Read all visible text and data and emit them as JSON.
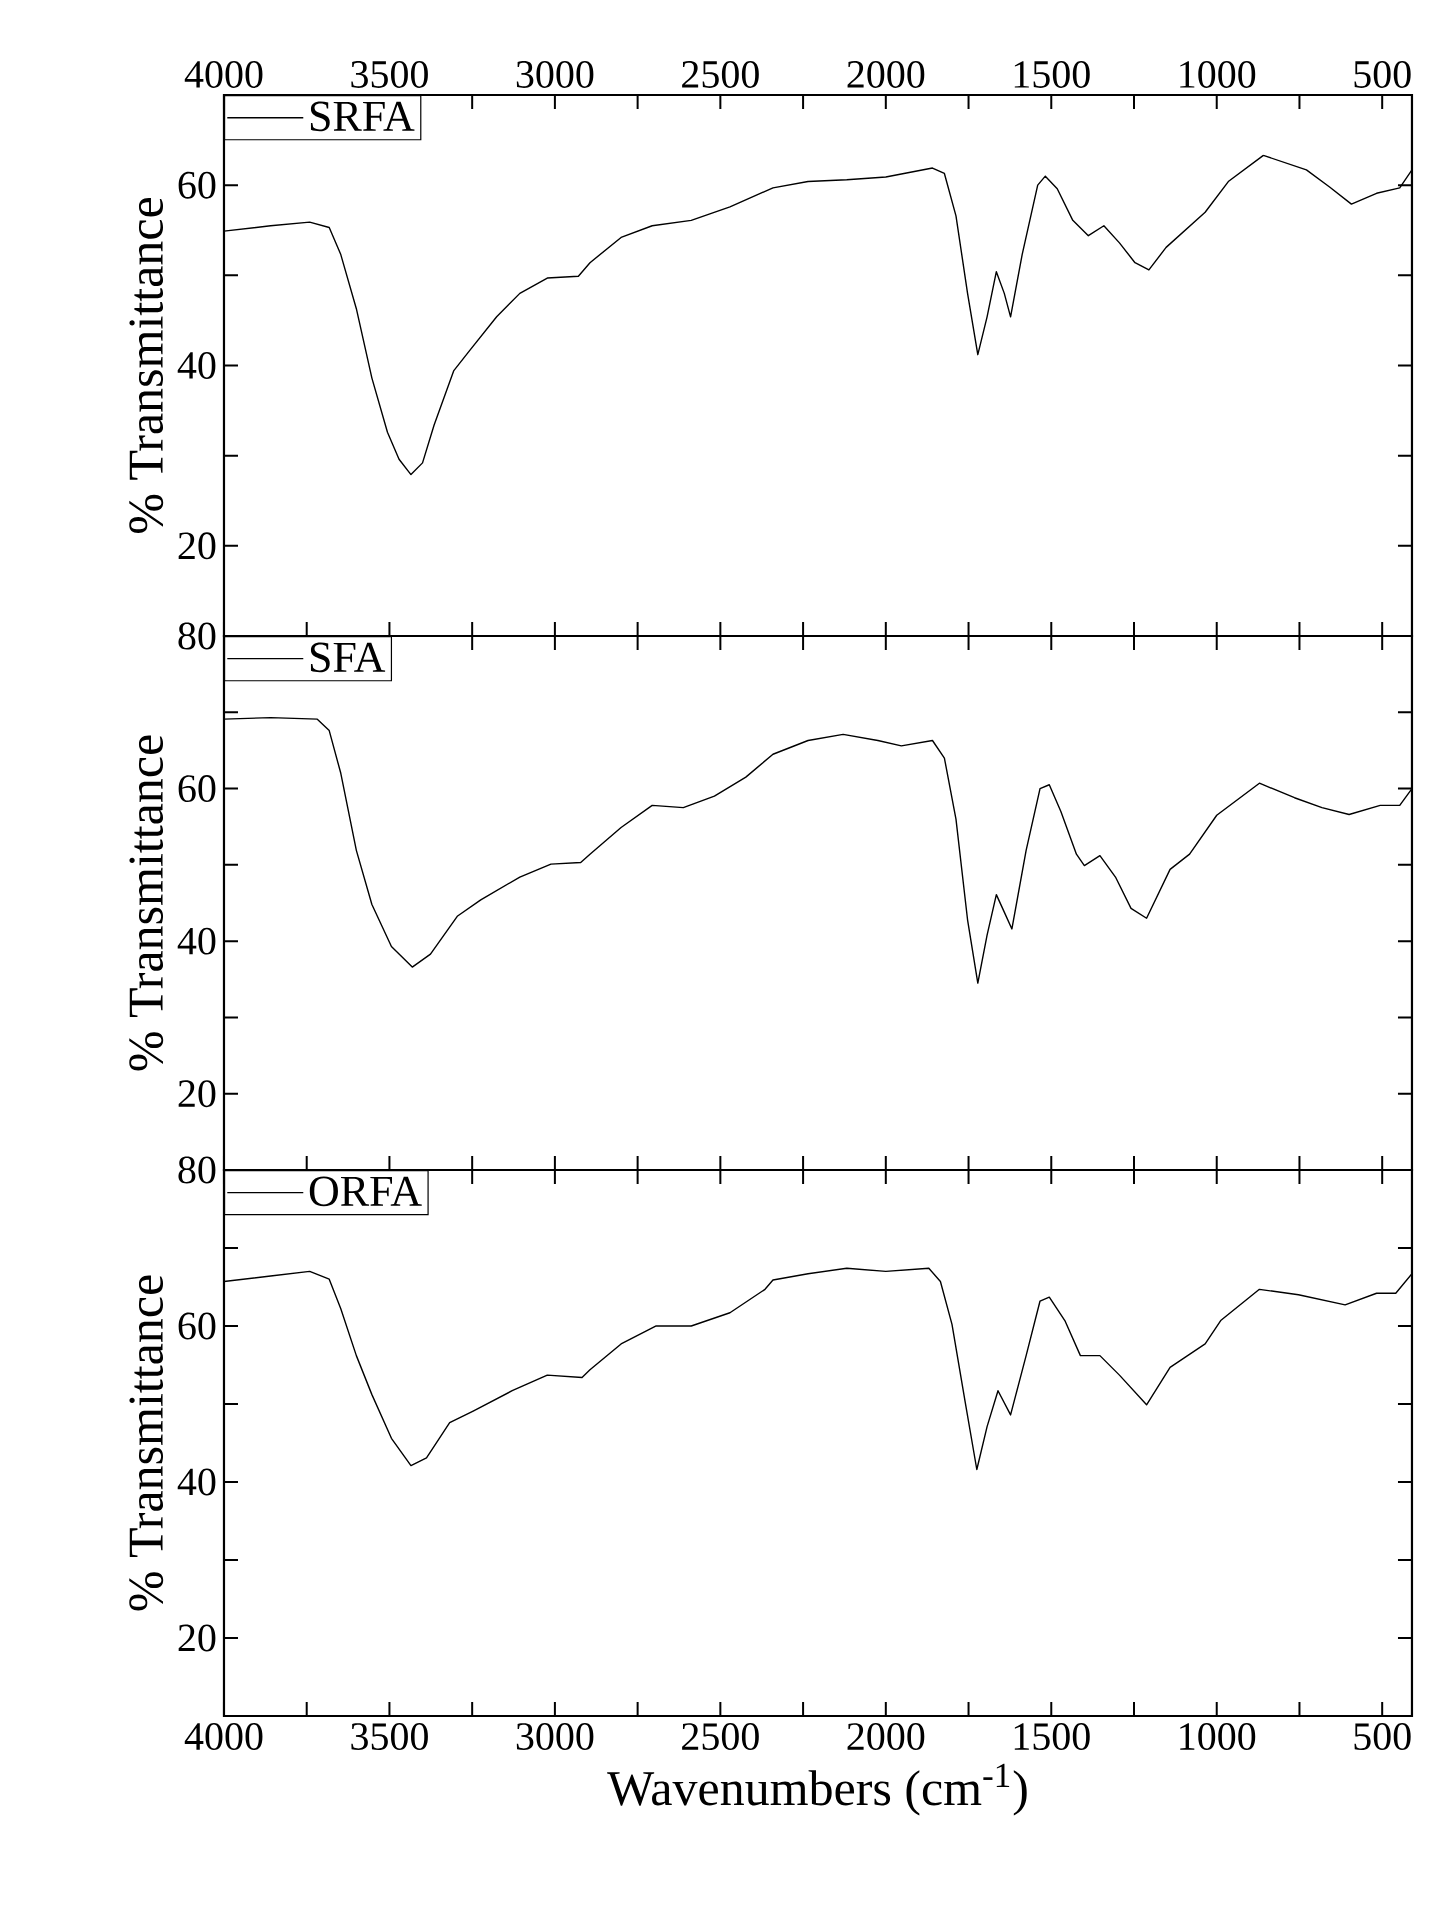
{
  "chart_data": [
    {
      "type": "line",
      "ylabel": "% Transmittance",
      "legend": "top left",
      "xlim": [
        4000,
        410
      ],
      "xticks": [
        4000,
        {
          "value": 3750,
          "label": null
        },
        3500,
        {
          "value": 3250,
          "label": null
        },
        3000,
        {
          "value": 2750,
          "label": null
        },
        2500,
        {
          "value": 2250,
          "label": null
        },
        2000,
        {
          "value": 1750,
          "label": null
        },
        1500,
        {
          "value": 1250,
          "label": null
        },
        1000,
        {
          "value": 750,
          "label": null
        },
        500
      ],
      "ylim": [
        10,
        70
      ],
      "yticks": [
        20,
        {
          "value": 30,
          "label": null
        },
        40,
        {
          "value": 50,
          "label": null
        },
        60
      ],
      "x": [
        4000,
        3859,
        3741,
        3682,
        3647,
        3600,
        3553,
        3506,
        3471,
        3435,
        3400,
        3365,
        3306,
        3259,
        3176,
        3106,
        3023,
        2929,
        2894,
        2800,
        2706,
        2588,
        2471,
        2341,
        2235,
        2118,
        2000,
        1859,
        1823,
        1788,
        1753,
        1722,
        1694,
        1666,
        1642,
        1623,
        1588,
        1541,
        1518,
        1482,
        1435,
        1388,
        1341,
        1294,
        1247,
        1205,
        1153,
        1035,
        965,
        859,
        729,
        659,
        593,
        517,
        447,
        410
      ],
      "series": [
        {
          "name": "SRFA",
          "color": "#000000",
          "values": [
            54.9,
            55.5,
            55.9,
            55.3,
            52.3,
            46.3,
            38.6,
            32.6,
            29.6,
            27.9,
            29.2,
            33.4,
            39.4,
            41.6,
            45.4,
            48.0,
            49.7,
            49.9,
            51.4,
            54.2,
            55.5,
            56.1,
            57.6,
            59.7,
            60.4,
            60.6,
            60.9,
            61.9,
            61.3,
            56.6,
            48.0,
            41.2,
            45.4,
            50.4,
            48.0,
            45.4,
            52.3,
            60.0,
            61.0,
            59.6,
            56.1,
            54.4,
            55.5,
            53.6,
            51.4,
            50.6,
            53.1,
            57.0,
            60.4,
            63.3,
            61.7,
            59.8,
            57.9,
            59.1,
            59.7,
            61.7
          ]
        }
      ]
    },
    {
      "type": "line",
      "ylabel": "% Transmittance",
      "legend": "top left",
      "tick_labels": "y",
      "xlim": [
        4000,
        410
      ],
      "xticks": [
        4000,
        {
          "value": 3750,
          "label": null
        },
        3500,
        {
          "value": 3250,
          "label": null
        },
        3000,
        {
          "value": 2750,
          "label": null
        },
        2500,
        {
          "value": 2250,
          "label": null
        },
        2000,
        {
          "value": 1750,
          "label": null
        },
        1500,
        {
          "value": 1250,
          "label": null
        },
        1000,
        {
          "value": 750,
          "label": null
        },
        500
      ],
      "ylim": [
        10,
        80
      ],
      "yticks": [
        20,
        {
          "value": 30,
          "label": null
        },
        40,
        {
          "value": 50,
          "label": null
        },
        60,
        {
          "value": 70,
          "label": null
        },
        80
      ],
      "x": [
        4000,
        3859,
        3718,
        3682,
        3647,
        3600,
        3553,
        3494,
        3431,
        3376,
        3294,
        3224,
        3106,
        3012,
        2922,
        2894,
        2800,
        2706,
        2612,
        2518,
        2423,
        2341,
        2235,
        2129,
        2024,
        1953,
        1859,
        1823,
        1788,
        1753,
        1722,
        1694,
        1666,
        1642,
        1619,
        1576,
        1534,
        1506,
        1471,
        1424,
        1400,
        1353,
        1306,
        1259,
        1212,
        1141,
        1082,
        1000,
        871,
        765,
        682,
        600,
        506,
        447,
        410
      ],
      "series": [
        {
          "name": "SFA",
          "color": "#000000",
          "values": [
            69.1,
            69.3,
            69.1,
            67.6,
            62.0,
            51.9,
            44.8,
            39.3,
            36.6,
            38.3,
            43.3,
            45.4,
            48.4,
            50.1,
            50.3,
            51.4,
            54.9,
            57.8,
            57.5,
            59.0,
            61.5,
            64.5,
            66.3,
            67.1,
            66.3,
            65.6,
            66.3,
            64.0,
            56.0,
            42.8,
            34.5,
            40.8,
            46.1,
            43.8,
            41.6,
            51.9,
            60.0,
            60.5,
            57.0,
            51.4,
            49.9,
            51.2,
            48.4,
            44.3,
            43.0,
            49.4,
            51.4,
            56.5,
            60.7,
            58.8,
            57.5,
            56.6,
            57.8,
            57.8,
            60.0
          ]
        }
      ]
    },
    {
      "type": "line",
      "ylabel": "% Transmittance",
      "xlabel": "Wavenumbers (cm$^{-1}$)",
      "legend": "top left",
      "xlim": [
        4000,
        410
      ],
      "xticks": [
        4000,
        {
          "value": 3750,
          "label": null
        },
        3500,
        {
          "value": 3250,
          "label": null
        },
        3000,
        {
          "value": 2750,
          "label": null
        },
        2500,
        {
          "value": 2250,
          "label": null
        },
        2000,
        {
          "value": 1750,
          "label": null
        },
        1500,
        {
          "value": 1250,
          "label": null
        },
        1000,
        {
          "value": 750,
          "label": null
        },
        500
      ],
      "ylim": [
        10,
        80
      ],
      "yticks": [
        20,
        {
          "value": 30,
          "label": null
        },
        40,
        {
          "value": 50,
          "label": null
        },
        60,
        {
          "value": 70,
          "label": null
        },
        80
      ],
      "x": [
        4000,
        3859,
        3741,
        3682,
        3647,
        3600,
        3553,
        3494,
        3435,
        3388,
        3318,
        3247,
        3129,
        3023,
        2918,
        2894,
        2800,
        2694,
        2588,
        2471,
        2365,
        2341,
        2235,
        2118,
        2000,
        1870,
        1835,
        1800,
        1760,
        1725,
        1694,
        1661,
        1623,
        1576,
        1534,
        1506,
        1459,
        1412,
        1353,
        1294,
        1212,
        1141,
        1035,
        988,
        871,
        753,
        612,
        517,
        459,
        410
      ],
      "series": [
        {
          "name": "ORFA",
          "color": "#000000",
          "values": [
            65.7,
            66.4,
            67.0,
            66.0,
            62.2,
            56.2,
            51.2,
            45.6,
            42.1,
            43.1,
            47.6,
            49.1,
            51.7,
            53.7,
            53.4,
            54.4,
            57.7,
            60.0,
            60.0,
            61.7,
            64.7,
            65.9,
            66.7,
            67.4,
            67.0,
            67.4,
            65.7,
            60.2,
            50.2,
            41.6,
            47.1,
            51.7,
            48.6,
            56.2,
            63.2,
            63.7,
            60.7,
            56.2,
            56.2,
            53.7,
            49.9,
            54.7,
            57.7,
            60.7,
            64.7,
            64.0,
            62.7,
            64.2,
            64.2,
            66.7
          ]
        }
      ]
    }
  ]
}
